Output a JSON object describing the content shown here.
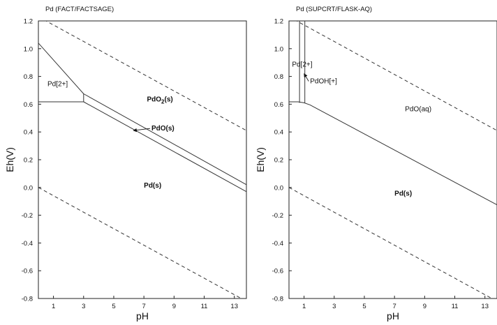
{
  "chart_data": [
    {
      "type": "line",
      "title": "Pd (FACT/FACTSAGE)",
      "xlabel": "pH",
      "ylabel": "Eh(V)",
      "xlim": [
        0,
        13.8
      ],
      "ylim": [
        -0.8,
        1.2
      ],
      "x_ticks": [
        1,
        3,
        5,
        7,
        9,
        11,
        13
      ],
      "y_ticks": [
        -0.8,
        -0.6,
        -0.4,
        -0.2,
        0.0,
        0.2,
        0.4,
        0.6,
        0.8,
        1.0,
        1.2
      ],
      "y_tick_labels": [
        "-0.8",
        "-0.6",
        "-0.4",
        "-0.2",
        "0.0",
        "0.2",
        "0.4",
        "0.6",
        "0.8",
        "1.0",
        "1.2"
      ],
      "grid": false,
      "series": [
        {
          "style": "dashed",
          "x": [
            0,
            13.8
          ],
          "y": [
            1.23,
            0.41
          ]
        },
        {
          "style": "dashed",
          "x": [
            0,
            13.8
          ],
          "y": [
            0.0,
            -0.82
          ]
        },
        {
          "style": "solid",
          "x": [
            0,
            3.0
          ],
          "y": [
            0.617,
            0.617
          ]
        },
        {
          "style": "solid",
          "x": [
            0,
            3.0
          ],
          "y": [
            1.04,
            0.675
          ]
        },
        {
          "style": "solid",
          "x": [
            3.0,
            3.0
          ],
          "y": [
            0.617,
            0.675
          ]
        },
        {
          "style": "solid",
          "x": [
            3.0,
            13.8
          ],
          "y": [
            0.675,
            0.02
          ]
        },
        {
          "style": "solid",
          "x": [
            3.0,
            13.8
          ],
          "y": [
            0.617,
            -0.03
          ]
        }
      ],
      "annotations": [
        {
          "text": "Pd[2+]",
          "x": 0.6,
          "y": 0.73,
          "bold": false
        },
        {
          "text": "PdO",
          "sub": "2",
          "after": "(s)",
          "x": 7.2,
          "y": 0.62,
          "bold": true
        },
        {
          "text": "PdO(s)",
          "x": 7.5,
          "y": 0.41,
          "bold": true,
          "arrow_to": [
            6.3,
            0.41
          ]
        },
        {
          "text": "Pd(s)",
          "x": 7.0,
          "y": 0.0,
          "bold": true
        }
      ]
    },
    {
      "type": "line",
      "title": "Pd (SUPCRT/FLASK-AQ)",
      "xlabel": "pH",
      "ylabel": "Eh(V)",
      "xlim": [
        0,
        13.8
      ],
      "ylim": [
        -0.8,
        1.2
      ],
      "x_ticks": [
        1,
        3,
        5,
        7,
        9,
        11,
        13
      ],
      "y_ticks": [
        -0.8,
        -0.6,
        -0.4,
        -0.2,
        0.0,
        0.2,
        0.4,
        0.6,
        0.8,
        1.0,
        1.2
      ],
      "y_tick_labels": [
        "-0.8",
        "-0.6",
        "-0.4",
        "-0.2",
        "0.0",
        "0.2",
        "0.4",
        "0.6",
        "0.8",
        "1.0",
        "1.2"
      ],
      "grid": false,
      "series": [
        {
          "style": "dashed",
          "x": [
            0,
            13.8
          ],
          "y": [
            1.23,
            0.41
          ]
        },
        {
          "style": "dashed",
          "x": [
            0,
            13.8
          ],
          "y": [
            0.0,
            -0.82
          ]
        },
        {
          "style": "solid",
          "x": [
            0.7,
            0.7
          ],
          "y": [
            1.2,
            0.61
          ]
        },
        {
          "style": "solid",
          "x": [
            1.05,
            1.05
          ],
          "y": [
            1.2,
            0.61
          ]
        },
        {
          "style": "solid",
          "x": [
            0,
            0.6,
            1.0,
            1.4,
            2.0,
            13.8
          ],
          "y": [
            0.617,
            0.617,
            0.61,
            0.595,
            0.56,
            -0.125
          ]
        }
      ],
      "annotations": [
        {
          "text": "Pd[2+]",
          "x": 0.2,
          "y": 0.87,
          "bold": false
        },
        {
          "text": "PdOH[+]",
          "x": 1.4,
          "y": 0.75,
          "bold": false,
          "arrow_to": [
            1.0,
            0.82
          ]
        },
        {
          "text": "PdO(aq)",
          "x": 7.7,
          "y": 0.55,
          "bold": false
        },
        {
          "text": "Pd(s)",
          "x": 7.0,
          "y": -0.06,
          "bold": true
        }
      ]
    }
  ]
}
